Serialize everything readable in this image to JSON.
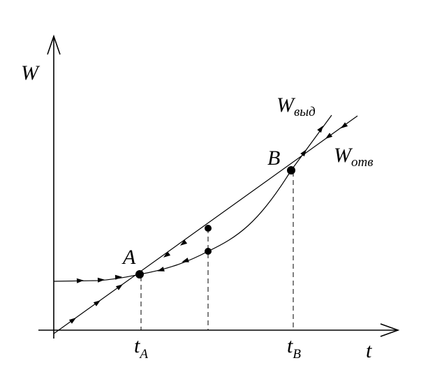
{
  "axes": {
    "y_label": "W",
    "x_label": "t"
  },
  "points": [
    {
      "label": "A"
    },
    {
      "label": "B"
    }
  ],
  "ticks": [
    {
      "symbol": "t",
      "subscript": "A"
    },
    {
      "symbol": "t",
      "subscript": "B"
    }
  ],
  "curves": [
    {
      "symbol": "W",
      "subscript": "выд"
    },
    {
      "symbol": "W",
      "subscript": "отв"
    }
  ]
}
